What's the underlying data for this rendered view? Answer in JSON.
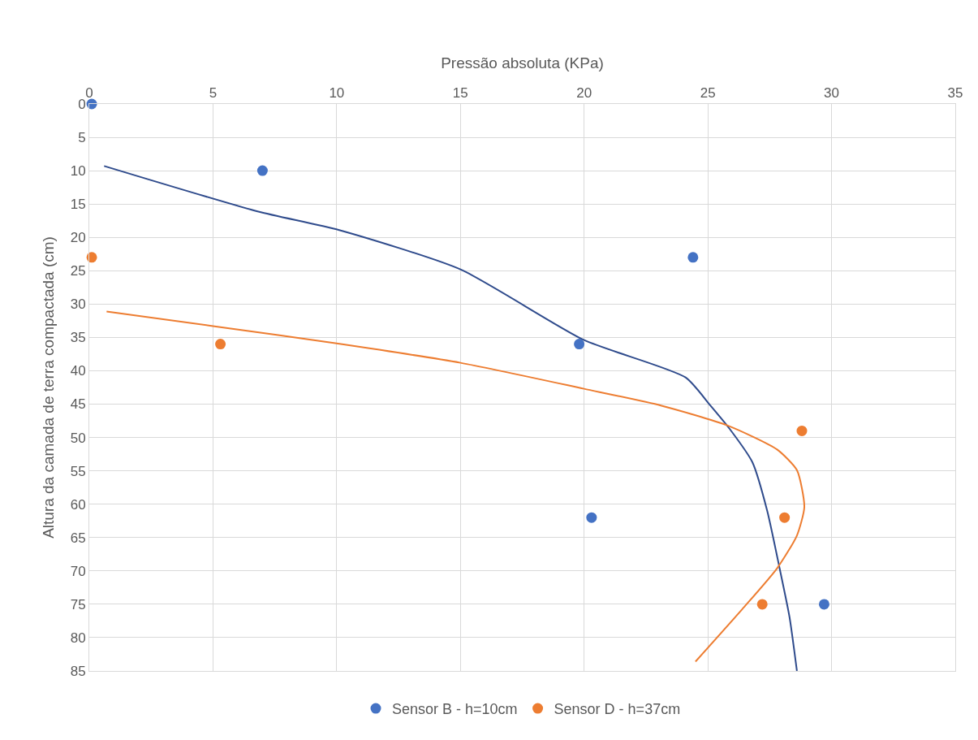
{
  "chart_data": {
    "type": "scatter",
    "xlabel": "Pressão absoluta (KPa)",
    "ylabel": "Altura da camada de terra compactada (cm)",
    "xlim": [
      0,
      35
    ],
    "xticks": [
      0,
      5,
      10,
      15,
      20,
      25,
      30,
      35
    ],
    "ylim": [
      85,
      0
    ],
    "yticks": [
      0,
      5,
      10,
      15,
      20,
      25,
      30,
      35,
      40,
      45,
      50,
      55,
      60,
      65,
      70,
      75,
      80,
      85
    ],
    "grid": true,
    "legend": "bottom",
    "marker": "circle",
    "series": [
      {
        "name": "Sensor B - h=10cm",
        "color": "#4472c4",
        "x": [
          0.1,
          7,
          24.4,
          19.8,
          20.3,
          29.7
        ],
        "values": [
          0,
          10,
          23,
          36,
          62,
          75
        ]
      },
      {
        "name": "Sensor D - h=37cm",
        "color": "#ed7d31",
        "x": [
          0.1,
          5.3,
          28.8,
          28.1,
          27.2
        ],
        "values": [
          23,
          36,
          49,
          62,
          75
        ]
      },
      {
        "type": "line",
        "color": "#2f4b8c",
        "marker": "none",
        "x": [
          0.6,
          6.8,
          10.1,
          15,
          20,
          24.1,
          25.1,
          25.9,
          26.8,
          27.4,
          27.9,
          28.3,
          28.6
        ],
        "values": [
          9.3,
          16.1,
          18.9,
          24.8,
          35.4,
          41,
          45.2,
          48.8,
          53.7,
          61,
          69.6,
          76.9,
          85
        ]
      },
      {
        "type": "line",
        "color": "#ed7d31",
        "marker": "none",
        "x": [
          0.7,
          5,
          10,
          15,
          20,
          23.1,
          25.8,
          27.8,
          28.6,
          28.9,
          28.6,
          27.8,
          26.4,
          24.5
        ],
        "values": [
          31.1,
          33.3,
          35.9,
          38.8,
          42.7,
          45.2,
          48.2,
          51.8,
          54.9,
          60.4,
          64.7,
          69.6,
          75.7,
          83.6
        ]
      }
    ]
  }
}
